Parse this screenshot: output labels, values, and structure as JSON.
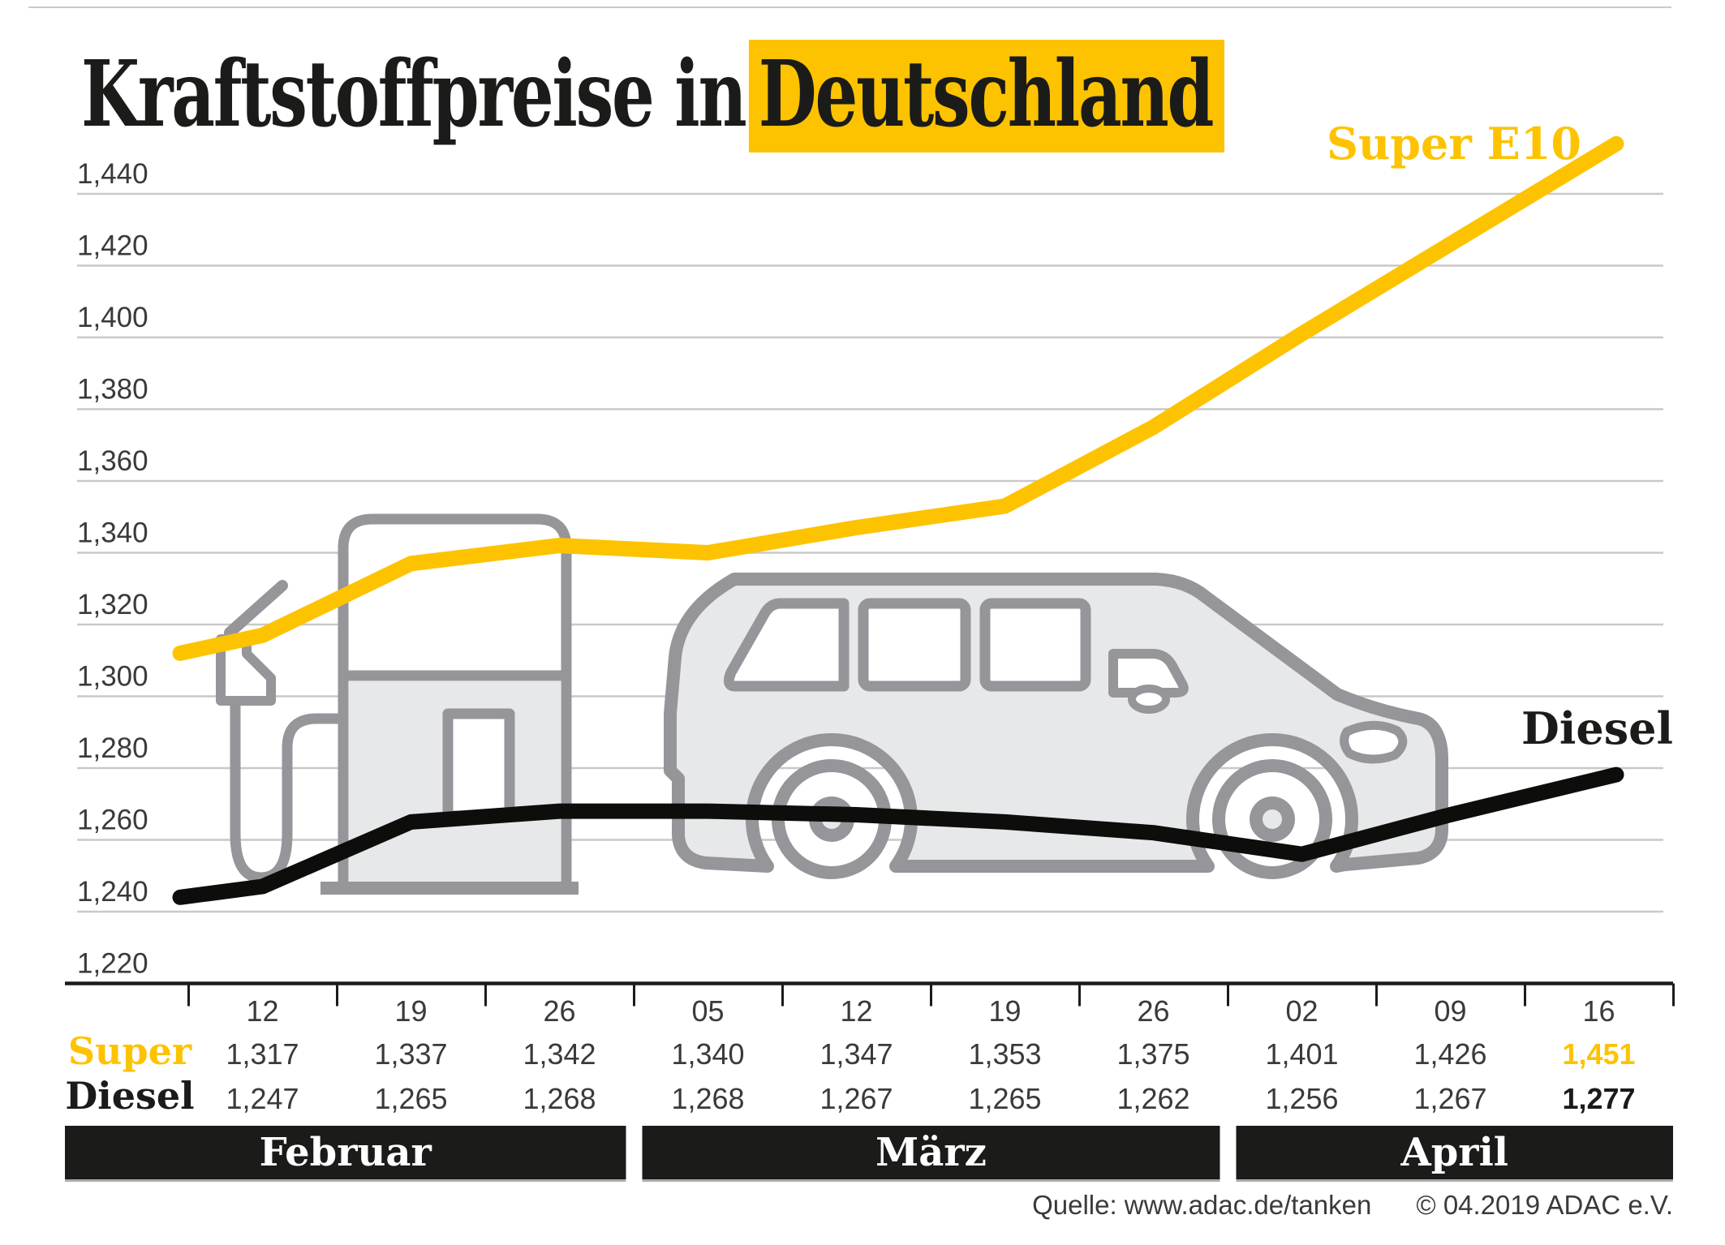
{
  "title": {
    "plain": "Kraftstoffpreise in",
    "highlight": "Deutschland"
  },
  "annotations": {
    "super": "Super E10",
    "diesel": "Diesel"
  },
  "y_axis": {
    "labels": [
      "1,440",
      "1,420",
      "1,400",
      "1,380",
      "1,360",
      "1,340",
      "1,320",
      "1,300",
      "1,280",
      "1,260",
      "1,240",
      "1,220"
    ],
    "values": [
      1440,
      1420,
      1400,
      1380,
      1360,
      1340,
      1320,
      1300,
      1280,
      1260,
      1240,
      1220
    ]
  },
  "chart_data": {
    "type": "line",
    "title": "Kraftstoffpreise in Deutschland",
    "x": [
      "12",
      "19",
      "26",
      "05",
      "12",
      "19",
      "26",
      "02",
      "09",
      "16"
    ],
    "x_months": [
      {
        "label": "Februar",
        "first_col": 0,
        "last_col": 2
      },
      {
        "label": "März",
        "first_col": 3,
        "last_col": 6
      },
      {
        "label": "April",
        "first_col": 7,
        "last_col": 9
      }
    ],
    "ylim": [
      1220,
      1460
    ],
    "gridline_values": [
      1440,
      1420,
      1400,
      1380,
      1360,
      1340,
      1320,
      1300,
      1280,
      1260,
      1240
    ],
    "grid": true,
    "legend_position": "inline-line-labels",
    "series": [
      {
        "name": "Super E10",
        "color": "#fdc300",
        "values": [
          1317,
          1337,
          1342,
          1340,
          1347,
          1353,
          1375,
          1401,
          1426,
          1451
        ],
        "lead_in_estimate": 1312
      },
      {
        "name": "Diesel",
        "color": "#0d0d0b",
        "values": [
          1247,
          1265,
          1268,
          1268,
          1267,
          1265,
          1262,
          1256,
          1267,
          1277
        ],
        "lead_in_estimate": 1244
      }
    ]
  },
  "table": {
    "rows": [
      {
        "label": "Super",
        "values": [
          "1,317",
          "1,337",
          "1,342",
          "1,340",
          "1,347",
          "1,353",
          "1,375",
          "1,401",
          "1,426",
          "1,451"
        ]
      },
      {
        "label": "Diesel",
        "values": [
          "1,247",
          "1,265",
          "1,268",
          "1,268",
          "1,267",
          "1,265",
          "1,262",
          "1,256",
          "1,267",
          "1,277"
        ]
      }
    ]
  },
  "footer": {
    "source": "Quelle: www.adac.de/tanken",
    "copyright": "© 04.2019  ADAC e.V."
  },
  "colors": {
    "accent": "#fdc300",
    "ink": "#1b1b19",
    "grid": "#c9c9c9",
    "illustration": "#95959a",
    "illustration_fill": "#e6e8ea"
  }
}
